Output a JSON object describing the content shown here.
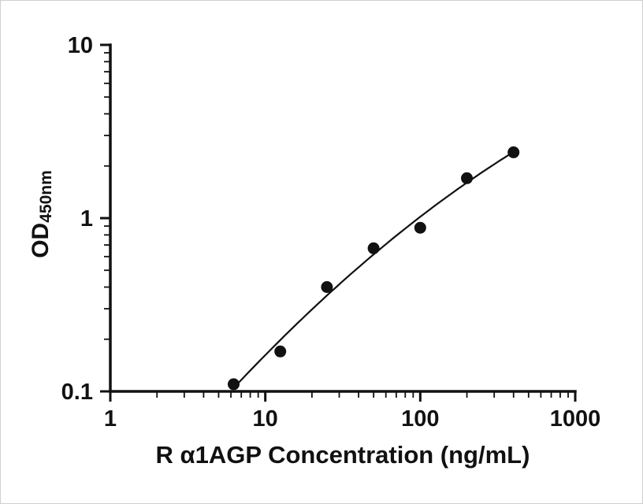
{
  "figure": {
    "background": "#ffffff",
    "ink_color": "#111111"
  },
  "chart_data": {
    "type": "scatter",
    "title": "",
    "xlabel": "R α1AGP Concentration (ng/mL)",
    "ylabel_main": "OD",
    "ylabel_sub": "450nm",
    "x_scale": "log10",
    "y_scale": "log10",
    "xlim": [
      1,
      1000
    ],
    "ylim": [
      0.1,
      10
    ],
    "x_ticks": [
      1,
      10,
      100,
      1000
    ],
    "x_tick_labels": [
      "1",
      "10",
      "100",
      "1000"
    ],
    "y_ticks": [
      0.1,
      1,
      10
    ],
    "y_tick_labels": [
      "0.1",
      "1",
      "10"
    ],
    "grid": false,
    "legend": "none",
    "marker": "filled-circle",
    "curve": "smooth regression curve through points (log-log)",
    "series": [
      {
        "name": "standard-curve-points",
        "x": [
          6.25,
          12.5,
          25,
          50,
          100,
          200,
          400
        ],
        "y": [
          0.11,
          0.17,
          0.4,
          0.67,
          0.88,
          1.7,
          2.4
        ]
      }
    ]
  }
}
